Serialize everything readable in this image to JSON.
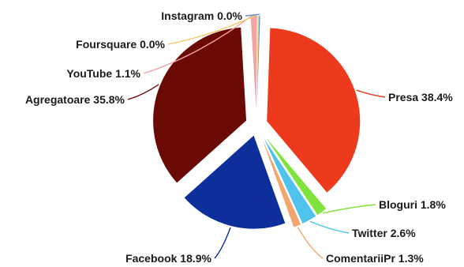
{
  "chart_data": {
    "type": "pie",
    "title": "",
    "slices": [
      {
        "name": "Presa",
        "value": 38.4,
        "label": "Presa 38.4%",
        "color": "#ee3a1c"
      },
      {
        "name": "Bloguri",
        "value": 1.8,
        "label": "Bloguri 1.8%",
        "color": "#7fe33c"
      },
      {
        "name": "Twitter",
        "value": 2.6,
        "label": "Twitter 2.6%",
        "color": "#4fc3ec"
      },
      {
        "name": "ComentariiPr",
        "value": 1.3,
        "label": "ComentariiPr 1.3%",
        "color": "#f2a66e"
      },
      {
        "name": "Facebook",
        "value": 18.9,
        "label": "Facebook 18.9%",
        "color": "#0d2f9c"
      },
      {
        "name": "Agregatoare",
        "value": 35.8,
        "label": "Agregatoare 35.8%",
        "color": "#6b0a05"
      },
      {
        "name": "YouTube",
        "value": 1.1,
        "label": "YouTube 1.1%",
        "color": "#f2a3a3"
      },
      {
        "name": "Foursquare",
        "value": 0.0,
        "label": "Foursquare 0.0%",
        "color": "#f2c86a"
      },
      {
        "name": "Instagram",
        "value": 0.0,
        "label": "Instagram 0.0%",
        "color": "#5b8fd6"
      }
    ]
  }
}
